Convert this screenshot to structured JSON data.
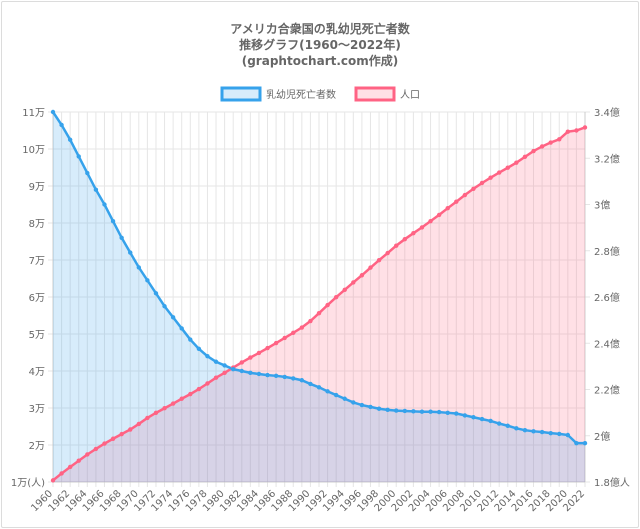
{
  "chart_data": {
    "type": "line",
    "title": [
      "アメリカ合衆国の乳幼児死亡者数",
      "推移グラフ(1960～2022年)",
      "(graphtochart.com作成)"
    ],
    "legend": {
      "placement": "top-center"
    },
    "x": [
      1960,
      1961,
      1962,
      1963,
      1964,
      1965,
      1966,
      1967,
      1968,
      1969,
      1970,
      1971,
      1972,
      1973,
      1974,
      1975,
      1976,
      1977,
      1978,
      1979,
      1980,
      1981,
      1982,
      1983,
      1984,
      1985,
      1986,
      1987,
      1988,
      1989,
      1990,
      1991,
      1992,
      1993,
      1994,
      1995,
      1996,
      1997,
      1998,
      1999,
      2000,
      2001,
      2002,
      2003,
      2004,
      2005,
      2006,
      2007,
      2008,
      2009,
      2010,
      2011,
      2012,
      2013,
      2014,
      2015,
      2016,
      2017,
      2018,
      2019,
      2020,
      2021,
      2022
    ],
    "x_tick_labels": [
      "1960",
      "1962",
      "1964",
      "1966",
      "1968",
      "1970",
      "1972",
      "1974",
      "1976",
      "1978",
      "1980",
      "1982",
      "1984",
      "1986",
      "1988",
      "1990",
      "1992",
      "1994",
      "1996",
      "1998",
      "2000",
      "2002",
      "2004",
      "2006",
      "2008",
      "2010",
      "2012",
      "2014",
      "2016",
      "2018",
      "2020",
      "2022"
    ],
    "y_left": {
      "min": 10000,
      "max": 110000,
      "ticks": [
        10000,
        20000,
        30000,
        40000,
        50000,
        60000,
        70000,
        80000,
        90000,
        100000,
        110000
      ],
      "tick_labels": [
        "1万(人)",
        "2万",
        "3万",
        "4万",
        "5万",
        "6万",
        "7万",
        "8万",
        "9万",
        "10万",
        "11万"
      ]
    },
    "y_right": {
      "min": 180000000,
      "max": 340000000,
      "ticks": [
        180000000,
        200000000,
        220000000,
        240000000,
        260000000,
        280000000,
        300000000,
        320000000,
        340000000
      ],
      "tick_labels": [
        "1.8億人",
        "2億",
        "2.2億",
        "2.4億",
        "2.6億",
        "2.8億",
        "3億",
        "3.2億",
        "3.4億"
      ]
    },
    "series": [
      {
        "name": "乳幼児死亡者数",
        "axis": "left",
        "color": "#36a2eb",
        "fill": "rgba(54,162,235,0.2)",
        "values": [
          110000,
          106500,
          102500,
          98000,
          93500,
          89000,
          85000,
          80500,
          76000,
          72000,
          68000,
          64500,
          61000,
          57500,
          54500,
          51500,
          48500,
          46000,
          44000,
          42500,
          41500,
          40500,
          40000,
          39500,
          39200,
          38900,
          38700,
          38400,
          38000,
          37500,
          36500,
          35600,
          34500,
          33500,
          32500,
          31500,
          30800,
          30300,
          29800,
          29500,
          29300,
          29200,
          29100,
          29000,
          29000,
          28900,
          28700,
          28500,
          28000,
          27500,
          27000,
          26500,
          25800,
          25200,
          24500,
          24000,
          23700,
          23500,
          23200,
          23000,
          22700,
          20500,
          20500
        ]
      },
      {
        "name": "人口",
        "axis": "right",
        "color": "#ff6384",
        "fill": "rgba(255,99,132,0.2)",
        "values": [
          180700000,
          183700000,
          186500000,
          189200000,
          191900000,
          194300000,
          196600000,
          198700000,
          200700000,
          202700000,
          205100000,
          207700000,
          209900000,
          211900000,
          213900000,
          216000000,
          218000000,
          220200000,
          222600000,
          225100000,
          227200000,
          229500000,
          231700000,
          233800000,
          235800000,
          237900000,
          240100000,
          242300000,
          244500000,
          246800000,
          249600000,
          253000000,
          256500000,
          259900000,
          263100000,
          266300000,
          269400000,
          272700000,
          275900000,
          279000000,
          282200000,
          285000000,
          287600000,
          290100000,
          292800000,
          295500000,
          298400000,
          301200000,
          304100000,
          306800000,
          309300000,
          311600000,
          313800000,
          315900000,
          318100000,
          320600000,
          323100000,
          325100000,
          326800000,
          328200000,
          331500000,
          332000000,
          333300000
        ]
      }
    ]
  }
}
